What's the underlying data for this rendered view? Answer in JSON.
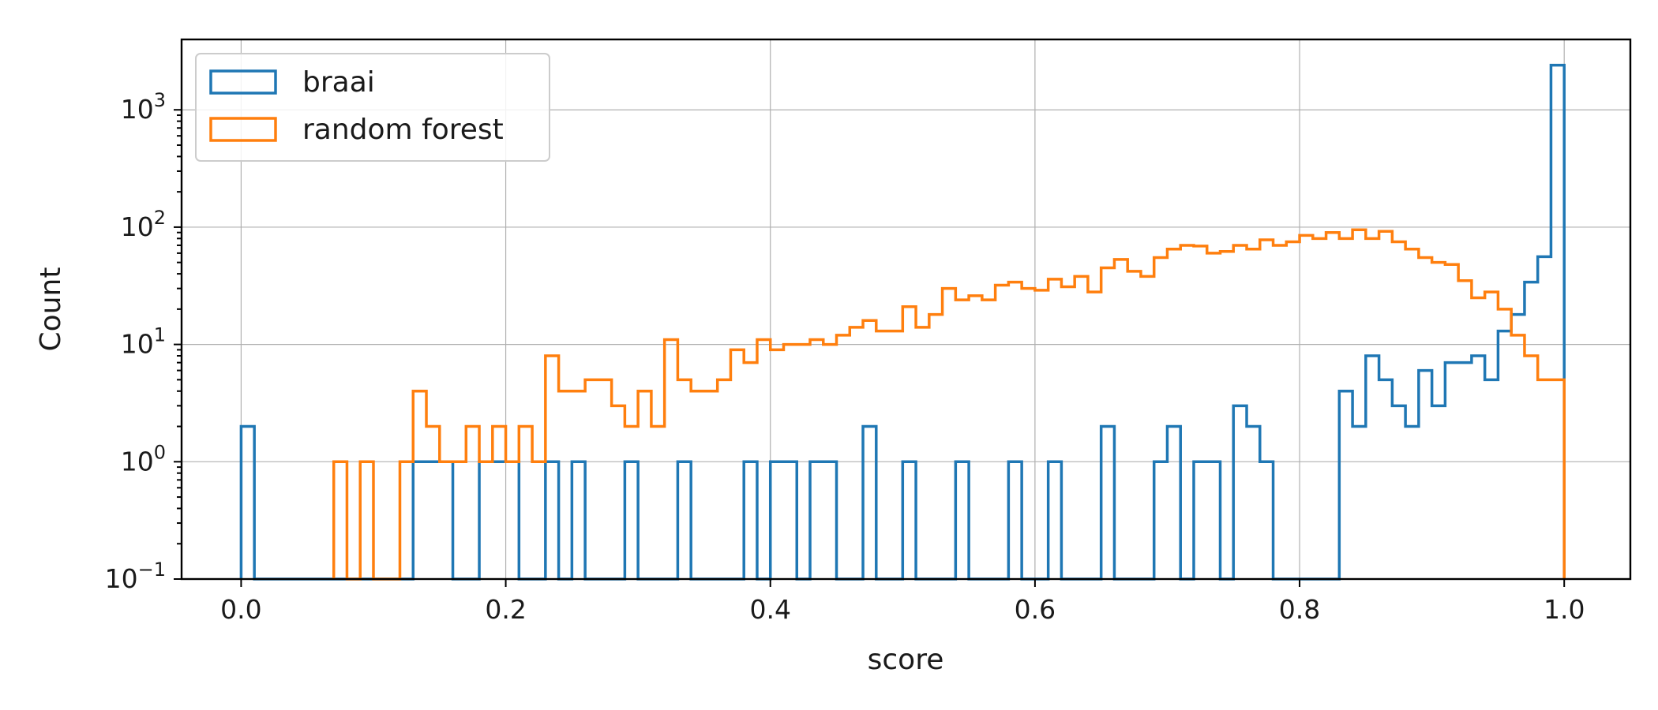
{
  "chart_data": {
    "type": "histogram",
    "xlabel": "score",
    "ylabel": "Count",
    "xlim": [
      -0.045,
      1.05
    ],
    "ylim_log10": [
      -1,
      3.6
    ],
    "yscale": "log",
    "grid": true,
    "legend_position": "top-left",
    "x_ticks": [
      "0.0",
      "0.2",
      "0.4",
      "0.6",
      "0.8",
      "1.0"
    ],
    "y_ticks": [
      {
        "base": "10",
        "exp": "−1"
      },
      {
        "base": "10",
        "exp": "0"
      },
      {
        "base": "10",
        "exp": "1"
      },
      {
        "base": "10",
        "exp": "2"
      },
      {
        "base": "10",
        "exp": "3"
      }
    ],
    "bin_width": 0.01,
    "series": [
      {
        "name": "braai",
        "color": "#1f77b4",
        "bins": [
          [
            0.0,
            2
          ],
          [
            0.13,
            1
          ],
          [
            0.14,
            1
          ],
          [
            0.15,
            1
          ],
          [
            0.18,
            1
          ],
          [
            0.19,
            1
          ],
          [
            0.2,
            1
          ],
          [
            0.23,
            1
          ],
          [
            0.25,
            1
          ],
          [
            0.29,
            1
          ],
          [
            0.33,
            1
          ],
          [
            0.38,
            1
          ],
          [
            0.4,
            1
          ],
          [
            0.41,
            1
          ],
          [
            0.43,
            1
          ],
          [
            0.44,
            1
          ],
          [
            0.47,
            2
          ],
          [
            0.5,
            1
          ],
          [
            0.54,
            1
          ],
          [
            0.58,
            1
          ],
          [
            0.61,
            1
          ],
          [
            0.65,
            2
          ],
          [
            0.69,
            1
          ],
          [
            0.7,
            2
          ],
          [
            0.72,
            1
          ],
          [
            0.73,
            1
          ],
          [
            0.75,
            3
          ],
          [
            0.76,
            2
          ],
          [
            0.77,
            1
          ],
          [
            0.83,
            4
          ],
          [
            0.84,
            2
          ],
          [
            0.85,
            8
          ],
          [
            0.86,
            5
          ],
          [
            0.87,
            3
          ],
          [
            0.88,
            2
          ],
          [
            0.89,
            6
          ],
          [
            0.9,
            3
          ],
          [
            0.91,
            7
          ],
          [
            0.92,
            7
          ],
          [
            0.93,
            8
          ],
          [
            0.94,
            5
          ],
          [
            0.95,
            13
          ],
          [
            0.96,
            18
          ],
          [
            0.97,
            34
          ],
          [
            0.98,
            56
          ],
          [
            0.99,
            2400
          ]
        ]
      },
      {
        "name": "random forest",
        "color": "#ff7f0e",
        "bins": [
          [
            0.07,
            1
          ],
          [
            0.09,
            1
          ],
          [
            0.12,
            1
          ],
          [
            0.13,
            4
          ],
          [
            0.14,
            2
          ],
          [
            0.15,
            1
          ],
          [
            0.16,
            1
          ],
          [
            0.17,
            2
          ],
          [
            0.18,
            1
          ],
          [
            0.19,
            2
          ],
          [
            0.2,
            1
          ],
          [
            0.21,
            2
          ],
          [
            0.22,
            1
          ],
          [
            0.23,
            8
          ],
          [
            0.24,
            4
          ],
          [
            0.25,
            4
          ],
          [
            0.26,
            5
          ],
          [
            0.27,
            5
          ],
          [
            0.28,
            3
          ],
          [
            0.29,
            2
          ],
          [
            0.3,
            4
          ],
          [
            0.31,
            2
          ],
          [
            0.32,
            11
          ],
          [
            0.33,
            5
          ],
          [
            0.34,
            4
          ],
          [
            0.35,
            4
          ],
          [
            0.36,
            5
          ],
          [
            0.37,
            9
          ],
          [
            0.38,
            7
          ],
          [
            0.39,
            11
          ],
          [
            0.4,
            9
          ],
          [
            0.41,
            10
          ],
          [
            0.42,
            10
          ],
          [
            0.43,
            11
          ],
          [
            0.44,
            10
          ],
          [
            0.45,
            12
          ],
          [
            0.46,
            14
          ],
          [
            0.47,
            16
          ],
          [
            0.48,
            13
          ],
          [
            0.49,
            13
          ],
          [
            0.5,
            21
          ],
          [
            0.51,
            14
          ],
          [
            0.52,
            18
          ],
          [
            0.53,
            30
          ],
          [
            0.54,
            24
          ],
          [
            0.55,
            26
          ],
          [
            0.56,
            24
          ],
          [
            0.57,
            32
          ],
          [
            0.58,
            34
          ],
          [
            0.59,
            30
          ],
          [
            0.6,
            29
          ],
          [
            0.61,
            36
          ],
          [
            0.62,
            31
          ],
          [
            0.63,
            38
          ],
          [
            0.64,
            28
          ],
          [
            0.65,
            45
          ],
          [
            0.66,
            53
          ],
          [
            0.67,
            42
          ],
          [
            0.68,
            38
          ],
          [
            0.69,
            55
          ],
          [
            0.7,
            65
          ],
          [
            0.71,
            70
          ],
          [
            0.72,
            69
          ],
          [
            0.73,
            60
          ],
          [
            0.74,
            62
          ],
          [
            0.75,
            70
          ],
          [
            0.76,
            65
          ],
          [
            0.77,
            78
          ],
          [
            0.78,
            70
          ],
          [
            0.79,
            75
          ],
          [
            0.8,
            85
          ],
          [
            0.81,
            80
          ],
          [
            0.82,
            90
          ],
          [
            0.83,
            80
          ],
          [
            0.84,
            95
          ],
          [
            0.85,
            80
          ],
          [
            0.86,
            92
          ],
          [
            0.87,
            75
          ],
          [
            0.88,
            65
          ],
          [
            0.89,
            55
          ],
          [
            0.9,
            50
          ],
          [
            0.91,
            48
          ],
          [
            0.92,
            35
          ],
          [
            0.93,
            25
          ],
          [
            0.94,
            28
          ],
          [
            0.95,
            20
          ],
          [
            0.96,
            12
          ],
          [
            0.97,
            8
          ],
          [
            0.98,
            5
          ],
          [
            0.99,
            5
          ]
        ]
      }
    ]
  }
}
